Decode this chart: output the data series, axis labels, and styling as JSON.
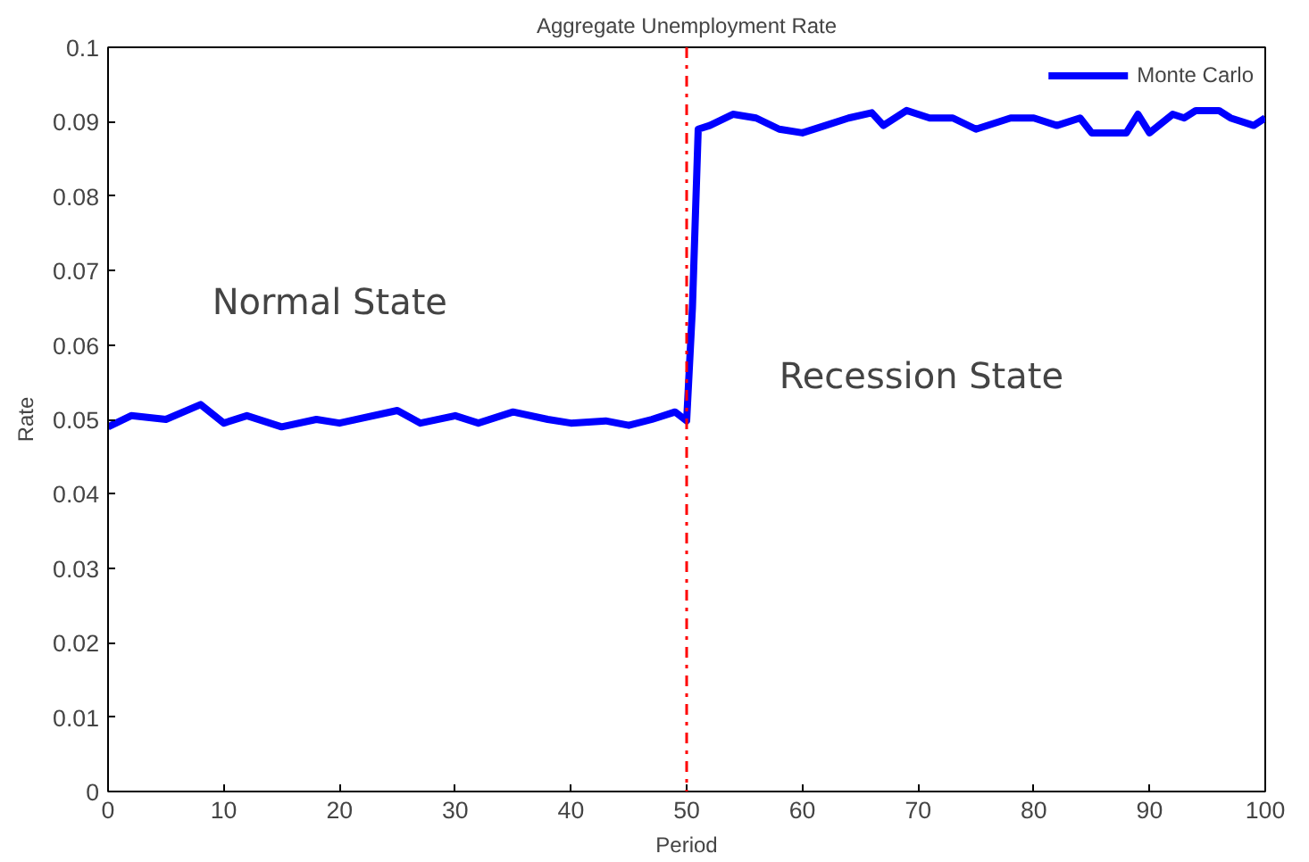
{
  "chart_data": {
    "type": "line",
    "title": "Aggregate Unemployment Rate",
    "xlabel": "Period",
    "ylabel": "Rate",
    "annotations": [
      "Normal State",
      "Recession State"
    ],
    "series": [
      {
        "name": "Monte Carlo",
        "color": "#0000ff",
        "x": [
          0,
          2,
          5,
          8,
          10,
          12,
          15,
          18,
          20,
          25,
          27,
          30,
          32,
          35,
          38,
          40,
          43,
          45,
          47,
          49,
          50,
          50.5,
          51,
          52,
          54,
          56,
          58,
          60,
          62,
          64,
          66,
          67,
          69,
          71,
          73,
          75,
          78,
          80,
          82,
          84,
          85,
          88,
          89,
          90,
          92,
          93,
          94,
          96,
          97,
          99,
          100
        ],
        "values": [
          0.049,
          0.0505,
          0.05,
          0.052,
          0.0495,
          0.0505,
          0.049,
          0.05,
          0.0495,
          0.0512,
          0.0495,
          0.0505,
          0.0495,
          0.051,
          0.05,
          0.0495,
          0.0498,
          0.0492,
          0.05,
          0.051,
          0.0498,
          0.065,
          0.089,
          0.0895,
          0.091,
          0.0905,
          0.089,
          0.0885,
          0.0895,
          0.0905,
          0.0912,
          0.0895,
          0.0915,
          0.0905,
          0.0905,
          0.089,
          0.0905,
          0.0905,
          0.0895,
          0.0905,
          0.0885,
          0.0885,
          0.091,
          0.0885,
          0.091,
          0.0905,
          0.0915,
          0.0915,
          0.0905,
          0.0895,
          0.0905
        ]
      }
    ],
    "ref_lines": [
      {
        "axis": "x",
        "value": 50,
        "label": null,
        "color": "#ff0000",
        "line_style": "dashdot"
      }
    ],
    "xlim": [
      0,
      100
    ],
    "xticks": [
      0,
      10,
      20,
      30,
      40,
      50,
      60,
      70,
      80,
      90,
      100
    ],
    "ylim": [
      0,
      0.1
    ],
    "yticks": [
      0,
      0.01,
      0.02,
      0.03,
      0.04,
      0.05,
      0.06,
      0.07,
      0.08,
      0.09,
      0.1
    ],
    "grid": false,
    "legend": "top right"
  }
}
